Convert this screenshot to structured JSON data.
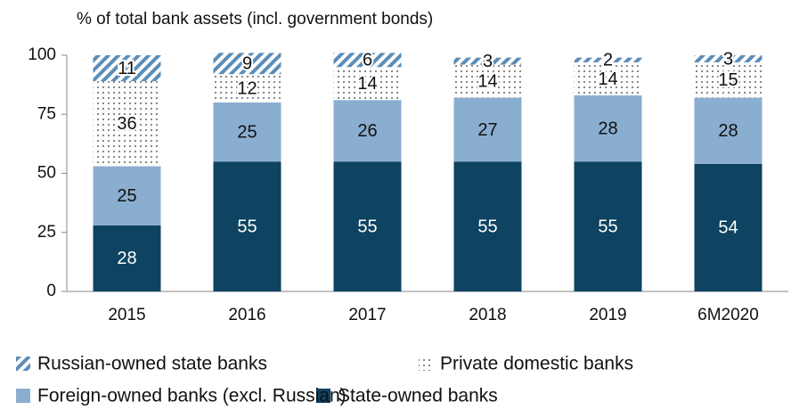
{
  "chart_data": {
    "type": "stacked_bar",
    "title": "% of total bank assets (incl. government bonds)",
    "categories": [
      "2015",
      "2016",
      "2017",
      "2018",
      "2019",
      "6M2020"
    ],
    "series": [
      {
        "name": "State-owned banks",
        "color": "#0e4361",
        "pattern": "solid",
        "values": [
          28,
          55,
          55,
          55,
          55,
          54
        ]
      },
      {
        "name": "Foreign-owned banks (excl. Russian)",
        "color": "#8aaed0",
        "pattern": "solid",
        "values": [
          25,
          25,
          26,
          27,
          28,
          28
        ]
      },
      {
        "name": "Private domestic banks",
        "color": "#333333",
        "pattern": "dots",
        "values": [
          36,
          12,
          14,
          14,
          14,
          15
        ]
      },
      {
        "name": "Russian-owned state banks",
        "color": "#5b8db8",
        "pattern": "hatch",
        "values": [
          11,
          9,
          6,
          3,
          2,
          3
        ]
      }
    ],
    "ylim": [
      0,
      100
    ],
    "yticks": [
      0,
      25,
      50,
      75,
      100
    ],
    "grid": false
  }
}
